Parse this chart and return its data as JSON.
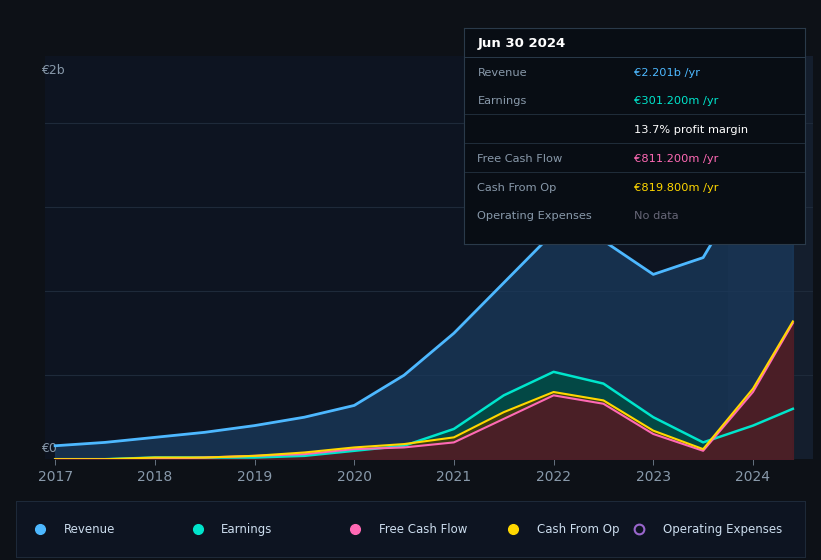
{
  "background_color": "#0d1117",
  "chart_bg": "#0d1421",
  "ylabel_top": "€2b",
  "ylabel_bottom": "€0",
  "x_years": [
    2017,
    2017.5,
    2018,
    2018.5,
    2019,
    2019.5,
    2020,
    2020.5,
    2021,
    2021.5,
    2022,
    2022.5,
    2023,
    2023.5,
    2024,
    2024.4
  ],
  "revenue": [
    0.08,
    0.1,
    0.13,
    0.16,
    0.2,
    0.25,
    0.32,
    0.5,
    0.75,
    1.05,
    1.35,
    1.3,
    1.1,
    1.2,
    1.7,
    2.2
  ],
  "earnings": [
    0.0,
    0.0,
    0.01,
    0.01,
    0.01,
    0.02,
    0.05,
    0.08,
    0.18,
    0.38,
    0.52,
    0.45,
    0.25,
    0.1,
    0.2,
    0.3
  ],
  "free_cash_flow": [
    0.0,
    0.0,
    0.0,
    0.01,
    0.02,
    0.03,
    0.06,
    0.07,
    0.1,
    0.24,
    0.38,
    0.33,
    0.15,
    0.05,
    0.4,
    0.81
  ],
  "cash_from_op": [
    0.0,
    0.0,
    0.01,
    0.01,
    0.02,
    0.04,
    0.07,
    0.09,
    0.13,
    0.28,
    0.4,
    0.35,
    0.17,
    0.06,
    0.42,
    0.82
  ],
  "revenue_color": "#4db8ff",
  "earnings_color": "#00e5cc",
  "fcf_color": "#ff69b4",
  "cfop_color": "#ffd700",
  "opex_color": "#9966cc",
  "revenue_fill": "#1a3a5c",
  "earnings_fill": "#004d44",
  "fcf_fill": "#4d1a2a",
  "cfop_fill": "#4d3d00",
  "grid_color": "#1e2a3a",
  "tick_label_color": "#8899aa",
  "axis_label_color": "#8899aa",
  "info_box_bg": "#080d14",
  "info_box_border": "#2a3a4a",
  "info_title": "Jun 30 2024",
  "info_title_color": "#ffffff",
  "info_rows": [
    {
      "label": "Revenue",
      "value": "€2.201b /yr",
      "value_color": "#4db8ff",
      "label_color": "#8899aa",
      "divider": true
    },
    {
      "label": "Earnings",
      "value": "€301.200m /yr",
      "value_color": "#00e5cc",
      "label_color": "#8899aa",
      "divider": false
    },
    {
      "label": "",
      "value": "13.7% profit margin",
      "value_color": "#ffffff",
      "label_color": "#8899aa",
      "divider": true
    },
    {
      "label": "Free Cash Flow",
      "value": "€811.200m /yr",
      "value_color": "#ff69b4",
      "label_color": "#8899aa",
      "divider": true
    },
    {
      "label": "Cash From Op",
      "value": "€819.800m /yr",
      "value_color": "#ffd700",
      "label_color": "#8899aa",
      "divider": true
    },
    {
      "label": "Operating Expenses",
      "value": "No data",
      "value_color": "#666677",
      "label_color": "#8899aa",
      "divider": false
    }
  ],
  "legend_items": [
    {
      "label": "Revenue",
      "color": "#4db8ff",
      "filled": true
    },
    {
      "label": "Earnings",
      "color": "#00e5cc",
      "filled": true
    },
    {
      "label": "Free Cash Flow",
      "color": "#ff69b4",
      "filled": true
    },
    {
      "label": "Cash From Op",
      "color": "#ffd700",
      "filled": true
    },
    {
      "label": "Operating Expenses",
      "color": "#9966cc",
      "filled": false
    }
  ],
  "xlim": [
    2016.9,
    2024.6
  ],
  "ylim": [
    0,
    2.4
  ],
  "x_ticks": [
    2017,
    2018,
    2019,
    2020,
    2021,
    2022,
    2023,
    2024
  ],
  "highlight_x_start": 2023.75
}
